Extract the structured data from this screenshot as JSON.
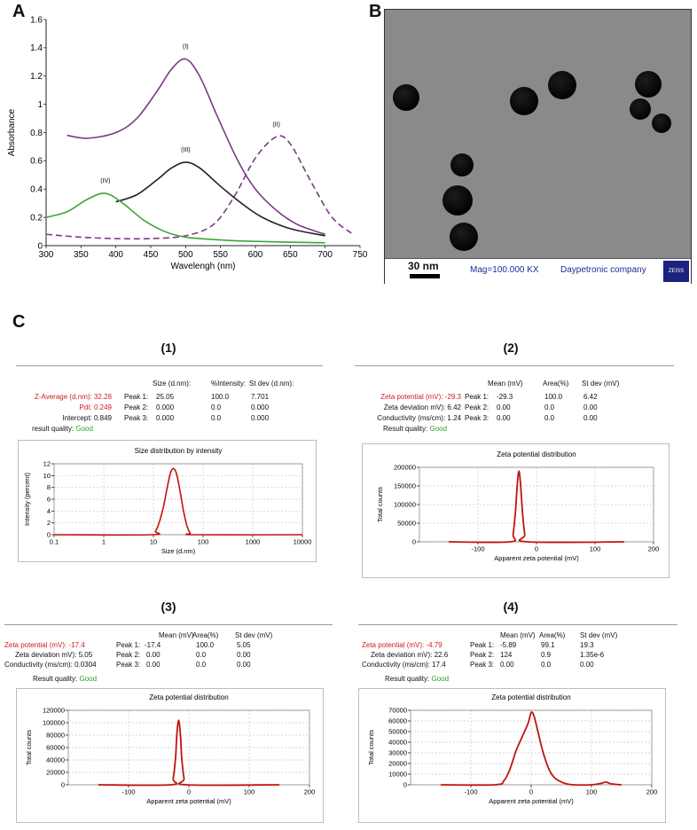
{
  "panel_labels": {
    "a": "A",
    "b": "B",
    "c": "C"
  },
  "tem": {
    "scale_label": "30 nm",
    "mag": "Mag=100.000 KX",
    "company": "Daypetronic company",
    "logo_text": "ZEISS"
  },
  "sections": [
    {
      "num": "(1)",
      "rows_left": [
        {
          "label": "Z-Average (d.nm): 32.28",
          "color": "red"
        },
        {
          "label": "PdI: 0.249",
          "color": "red"
        },
        {
          "label": "Intercept: 0.849",
          "color": ""
        }
      ],
      "quality_label": "result quality:",
      "quality_value": "Good",
      "headers": [
        "Size (d.nm):",
        "%Intensity:",
        "St dev (d.nm):"
      ],
      "peaks": [
        {
          "name": "Peak 1:",
          "vals": [
            "25.05",
            "100.0",
            "7.701"
          ]
        },
        {
          "name": "Peak 2:",
          "vals": [
            "0.000",
            "0.0",
            "0.000"
          ]
        },
        {
          "name": "Peak 3:",
          "vals": [
            "0.000",
            "0.0",
            "0.000"
          ]
        }
      ]
    },
    {
      "num": "(2)",
      "rows_left": [
        {
          "label": "Zeta potential (mV): -29.3",
          "color": "red"
        },
        {
          "label": "Zeta deviation mV): 6.42",
          "color": ""
        },
        {
          "label": "Conductivity (ms/cm): 1.24",
          "color": ""
        }
      ],
      "quality_label": "Result quality:",
      "quality_value": "Good",
      "headers": [
        "Mean (mV)",
        "Area(%)",
        "St dev (mV)"
      ],
      "peaks": [
        {
          "name": "Peak 1:",
          "vals": [
            "-29.3",
            "100.0",
            "6.42"
          ]
        },
        {
          "name": "Peak 2:",
          "vals": [
            "0.00",
            "0.0",
            "0.00"
          ]
        },
        {
          "name": "Peak 3:",
          "vals": [
            "0.00",
            "0.0",
            "0.00"
          ]
        }
      ]
    },
    {
      "num": "(3)",
      "rows_left": [
        {
          "label": "Zeta potential (mV): -17.4",
          "color": "red"
        },
        {
          "label": "Zeta deviation mV): 5.05",
          "color": ""
        },
        {
          "label": "Conductivity (ms/cm): 0.0304",
          "color": ""
        }
      ],
      "quality_label": "Result quality:",
      "quality_value": "Good",
      "headers": [
        "Mean (mV)",
        "Area(%)",
        "St dev (mV)"
      ],
      "peaks": [
        {
          "name": "Peak 1:",
          "vals": [
            "-17.4",
            "100.0",
            "5.05"
          ]
        },
        {
          "name": "Peak 2:",
          "vals": [
            "0.00",
            "0.0",
            "0.00"
          ]
        },
        {
          "name": "Peak 3:",
          "vals": [
            "0.00",
            "0.0",
            "0.00"
          ]
        }
      ]
    },
    {
      "num": "(4)",
      "rows_left": [
        {
          "label": "Zeta potential (mV): -4.79",
          "color": "red"
        },
        {
          "label": "Zeta deviation mV): 22.6",
          "color": ""
        },
        {
          "label": "Conductivity (ms/cm): 17.4",
          "color": ""
        }
      ],
      "quality_label": "Result quality:",
      "quality_value": "Good",
      "headers": [
        "Mean (mV)",
        "Area(%)",
        "St dev (mV)"
      ],
      "peaks": [
        {
          "name": "Peak 1:",
          "vals": [
            "-5.89",
            "99.1",
            "19.3"
          ]
        },
        {
          "name": "Peak 2:",
          "vals": [
            "124",
            "0.9",
            "1.35e-6"
          ]
        },
        {
          "name": "Peak 3:",
          "vals": [
            "0.00",
            "0.0",
            "0.00"
          ]
        }
      ]
    }
  ],
  "chart_data": [
    {
      "id": "A",
      "type": "line",
      "xlabel": "Wavelengh (nm)",
      "ylabel": "Absorbance",
      "xlim": [
        300,
        750
      ],
      "ylim": [
        0,
        1.6
      ],
      "xticks": [
        300,
        350,
        400,
        450,
        500,
        550,
        600,
        650,
        700,
        750
      ],
      "yticks": [
        0,
        0.2,
        0.4,
        0.6,
        0.8,
        1,
        1.2,
        1.4,
        1.6
      ],
      "grid": false,
      "series": [
        {
          "name": "(I)",
          "color": "#7a3a85",
          "dash": false,
          "x": [
            330,
            360,
            400,
            430,
            460,
            480,
            500,
            520,
            545,
            575,
            600,
            630,
            660,
            700
          ],
          "y": [
            0.78,
            0.76,
            0.8,
            0.9,
            1.1,
            1.25,
            1.32,
            1.2,
            0.92,
            0.6,
            0.4,
            0.25,
            0.15,
            0.08
          ]
        },
        {
          "name": "(II)",
          "color": "#7a3a85",
          "dash": true,
          "x": [
            300,
            350,
            400,
            450,
            500,
            540,
            570,
            600,
            630,
            650,
            680,
            710,
            740
          ],
          "y": [
            0.08,
            0.06,
            0.05,
            0.05,
            0.07,
            0.15,
            0.35,
            0.62,
            0.77,
            0.72,
            0.45,
            0.2,
            0.08
          ]
        },
        {
          "name": "(III)",
          "color": "#222222",
          "dash": false,
          "x": [
            400,
            430,
            460,
            480,
            500,
            520,
            550,
            580,
            610,
            650,
            700
          ],
          "y": [
            0.31,
            0.36,
            0.47,
            0.55,
            0.59,
            0.55,
            0.42,
            0.3,
            0.2,
            0.12,
            0.07
          ]
        },
        {
          "name": "(IV)",
          "color": "#3aa63a",
          "dash": false,
          "x": [
            300,
            330,
            360,
            385,
            410,
            440,
            470,
            500,
            550,
            600,
            700
          ],
          "y": [
            0.2,
            0.24,
            0.33,
            0.37,
            0.3,
            0.18,
            0.1,
            0.06,
            0.04,
            0.03,
            0.02
          ]
        }
      ]
    },
    {
      "id": "C1",
      "type": "line",
      "title": "Size distribution by intensity",
      "xlabel": "Size (d.nm)",
      "ylabel": "Intensity (percent)",
      "xscale": "log",
      "xlim": [
        0.1,
        10000
      ],
      "ylim": [
        0,
        12
      ],
      "xticks": [
        0.1,
        1,
        10,
        100,
        1000,
        10000
      ],
      "xticklabels": [
        "0.1",
        "1",
        "10",
        "100",
        "1000",
        "10000"
      ],
      "yticks": [
        0,
        2,
        4,
        6,
        8,
        10,
        12
      ],
      "grid": true,
      "series": [
        {
          "color": "#c0140f",
          "x": [
            0.1,
            9,
            11,
            13,
            16,
            19,
            22,
            25,
            29,
            34,
            40,
            47,
            55,
            70,
            10000
          ],
          "y": [
            0,
            0,
            0.6,
            2.0,
            4.8,
            8.0,
            10.4,
            11.2,
            10.4,
            7.6,
            4.2,
            1.6,
            0.3,
            0,
            0
          ]
        }
      ]
    },
    {
      "id": "C2",
      "type": "line",
      "title": "Zeta potential distribution",
      "xlabel": "Apparent zeta potential (mV)",
      "ylabel": "Total counts",
      "xlim": [
        -200,
        200
      ],
      "ylim": [
        0,
        200000
      ],
      "xticks": [
        -100,
        0,
        100,
        200
      ],
      "yticks": [
        0,
        50000,
        100000,
        150000,
        200000
      ],
      "grid": true,
      "series": [
        {
          "color": "#c0140f",
          "x": [
            -150,
            -45,
            -40,
            -36,
            -33,
            -30,
            -27,
            -24,
            -20,
            -16,
            150
          ],
          "y": [
            0,
            0,
            20000,
            80000,
            150000,
            190000,
            150000,
            80000,
            20000,
            0,
            0
          ]
        }
      ]
    },
    {
      "id": "C3",
      "type": "line",
      "title": "Zeta potential distribution",
      "xlabel": "Apparent zeta potential (mV)",
      "ylabel": "Total counts",
      "xlim": [
        -200,
        200
      ],
      "ylim": [
        0,
        120000
      ],
      "xticks": [
        -100,
        0,
        100,
        200
      ],
      "yticks": [
        0,
        20000,
        40000,
        60000,
        80000,
        100000,
        120000
      ],
      "grid": true,
      "series": [
        {
          "color": "#c0140f",
          "x": [
            -150,
            -30,
            -26,
            -22,
            -20,
            -17,
            -14,
            -12,
            -8,
            -4,
            150
          ],
          "y": [
            0,
            0,
            10000,
            45000,
            80000,
            104000,
            80000,
            45000,
            10000,
            0,
            0
          ]
        }
      ]
    },
    {
      "id": "C4",
      "type": "line",
      "title": "Zeta potential distribution",
      "xlabel": "Apparent zeta potential (mV)",
      "ylabel": "Total counts",
      "xlim": [
        -200,
        200
      ],
      "ylim": [
        0,
        70000
      ],
      "xticks": [
        -100,
        0,
        100,
        200
      ],
      "yticks": [
        0,
        10000,
        20000,
        30000,
        40000,
        50000,
        60000,
        70000
      ],
      "grid": true,
      "series": [
        {
          "color": "#c0140f",
          "x": [
            -150,
            -60,
            -45,
            -35,
            -25,
            -15,
            -5,
            0,
            5,
            12,
            20,
            30,
            40,
            55,
            70,
            100,
            115,
            124,
            133,
            150
          ],
          "y": [
            0,
            0,
            4000,
            15000,
            32000,
            45000,
            58000,
            68000,
            64000,
            48000,
            30000,
            14000,
            6000,
            1500,
            0,
            0,
            1200,
            2500,
            800,
            0
          ]
        }
      ]
    }
  ]
}
